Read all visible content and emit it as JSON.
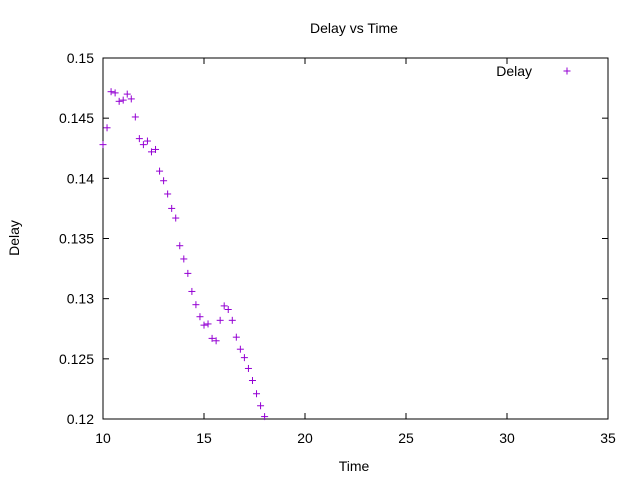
{
  "chart_data": {
    "type": "scatter",
    "title": "Delay vs Time",
    "xlabel": "Time",
    "ylabel": "Delay",
    "xlim": [
      10,
      35
    ],
    "ylim": [
      0.12,
      0.15
    ],
    "xticks": [
      "10",
      "15",
      "20",
      "25",
      "30",
      "35"
    ],
    "yticks": [
      "0.12",
      "0.125",
      "0.13",
      "0.135",
      "0.14",
      "0.145",
      "0.15"
    ],
    "grid": false,
    "legend_position": "top-right",
    "marker": "plus",
    "series": [
      {
        "name": "Delay",
        "color": "#9400d3",
        "points": [
          [
            10.0,
            0.1428
          ],
          [
            10.2,
            0.1442
          ],
          [
            10.4,
            0.1472
          ],
          [
            10.6,
            0.1471
          ],
          [
            10.8,
            0.1464
          ],
          [
            11.0,
            0.1465
          ],
          [
            11.2,
            0.147
          ],
          [
            11.4,
            0.1466
          ],
          [
            11.6,
            0.1451
          ],
          [
            11.8,
            0.1433
          ],
          [
            12.0,
            0.1428
          ],
          [
            12.2,
            0.1431
          ],
          [
            12.4,
            0.1422
          ],
          [
            12.6,
            0.1424
          ],
          [
            12.8,
            0.1406
          ],
          [
            13.0,
            0.1398
          ],
          [
            13.2,
            0.1387
          ],
          [
            13.4,
            0.1375
          ],
          [
            13.6,
            0.1367
          ],
          [
            13.8,
            0.1344
          ],
          [
            14.0,
            0.1333
          ],
          [
            14.2,
            0.1321
          ],
          [
            14.4,
            0.1306
          ],
          [
            14.6,
            0.1295
          ],
          [
            14.8,
            0.1285
          ],
          [
            15.0,
            0.1278
          ],
          [
            15.2,
            0.1279
          ],
          [
            15.4,
            0.1267
          ],
          [
            15.6,
            0.1265
          ],
          [
            15.8,
            0.1282
          ],
          [
            16.0,
            0.1294
          ],
          [
            16.2,
            0.1291
          ],
          [
            16.4,
            0.1282
          ],
          [
            16.6,
            0.1268
          ],
          [
            16.8,
            0.1258
          ],
          [
            17.0,
            0.1251
          ],
          [
            17.2,
            0.1242
          ],
          [
            17.4,
            0.1232
          ],
          [
            17.6,
            0.1221
          ],
          [
            17.8,
            0.1211
          ],
          [
            18.0,
            0.1202
          ]
        ]
      }
    ]
  },
  "colors": {
    "axis": "#000000",
    "series": "#9400d3"
  }
}
